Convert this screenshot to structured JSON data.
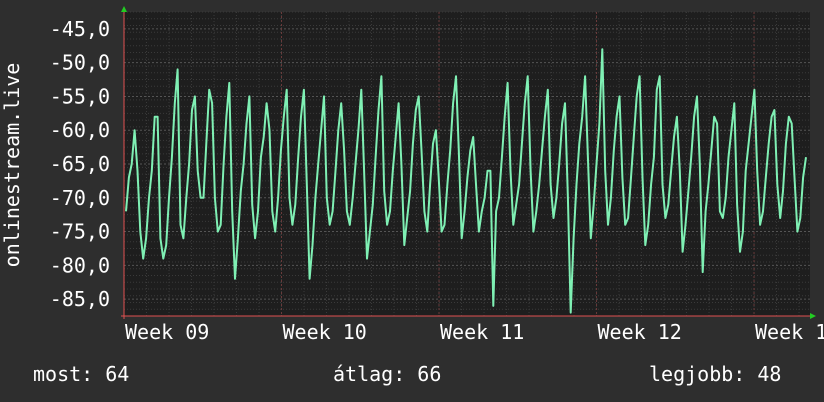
{
  "chart_data": {
    "type": "line",
    "ylabel": "onlinestream.live",
    "ylim": [
      -87.5,
      -42.5
    ],
    "ytick_values": [
      -45,
      -50,
      -55,
      -60,
      -65,
      -70,
      -75,
      -80,
      -85
    ],
    "ytick_labels": [
      "-45,0",
      "-50,0",
      "-55,0",
      "-60,0",
      "-65,0",
      "-70,0",
      "-75,0",
      "-80,0",
      "-85,0"
    ],
    "xtick_labels": [
      "Week 09",
      "Week 10",
      "Week 11",
      "Week 12",
      "Week 1"
    ],
    "grid": true,
    "colors": {
      "background": "#2e2e2e",
      "plot": "#1e1e1e",
      "line": "#7ff0b4",
      "grid": "#555555",
      "axis": "#e05050",
      "arrow": "#22cc22",
      "text": "#ffffff"
    },
    "series": [
      {
        "values": [
          -72,
          -67,
          -65,
          -60,
          -66,
          -75,
          -79,
          -76,
          -70,
          -66,
          -58,
          -58,
          -76,
          -79,
          -77,
          -70,
          -64,
          -56,
          -51,
          -74,
          -76,
          -70,
          -65,
          -57,
          -55,
          -66,
          -70,
          -70,
          -62,
          -54,
          -56,
          -70,
          -75,
          -74,
          -65,
          -58,
          -53,
          -72,
          -82,
          -76,
          -69,
          -65,
          -59,
          -55,
          -71,
          -76,
          -72,
          -64,
          -61,
          -56,
          -60,
          -72,
          -75,
          -70,
          -63,
          -58,
          -54,
          -70,
          -74,
          -71,
          -64,
          -58,
          -54,
          -68,
          -82,
          -77,
          -70,
          -65,
          -60,
          -55,
          -70,
          -74,
          -72,
          -66,
          -60,
          -56,
          -63,
          -72,
          -74,
          -70,
          -65,
          -60,
          -54,
          -66,
          -79,
          -75,
          -71,
          -64,
          -57,
          -52,
          -69,
          -74,
          -72,
          -66,
          -61,
          -56,
          -65,
          -77,
          -73,
          -69,
          -62,
          -57,
          -55,
          -63,
          -72,
          -75,
          -68,
          -62,
          -60,
          -67,
          -75,
          -74,
          -68,
          -63,
          -56,
          -52,
          -63,
          -76,
          -72,
          -67,
          -63,
          -61,
          -68,
          -75,
          -72,
          -70,
          -66,
          -66,
          -86,
          -72,
          -70,
          -64,
          -58,
          -53,
          -66,
          -74,
          -71,
          -68,
          -62,
          -56,
          -52,
          -66,
          -75,
          -72,
          -68,
          -63,
          -58,
          -54,
          -68,
          -73,
          -70,
          -65,
          -59,
          -56,
          -70,
          -87,
          -76,
          -68,
          -62,
          -58,
          -52,
          -64,
          -76,
          -71,
          -65,
          -59,
          -48,
          -66,
          -74,
          -70,
          -63,
          -58,
          -55,
          -67,
          -74,
          -73,
          -67,
          -61,
          -55,
          -52,
          -67,
          -77,
          -74,
          -68,
          -64,
          -54,
          -52,
          -68,
          -73,
          -71,
          -66,
          -61,
          -58,
          -66,
          -78,
          -74,
          -69,
          -64,
          -58,
          -55,
          -65,
          -81,
          -72,
          -68,
          -63,
          -58,
          -59,
          -72,
          -73,
          -70,
          -64,
          -60,
          -56,
          -71,
          -78,
          -75,
          -66,
          -62,
          -58,
          -54,
          -66,
          -74,
          -72,
          -67,
          -62,
          -58,
          -57,
          -68,
          -73,
          -69,
          -62,
          -58,
          -59,
          -67,
          -75,
          -73,
          -67,
          -64
        ]
      }
    ]
  },
  "stats": {
    "current": "most: 64",
    "average": "átlag: 66",
    "best": "legjobb: 48"
  }
}
